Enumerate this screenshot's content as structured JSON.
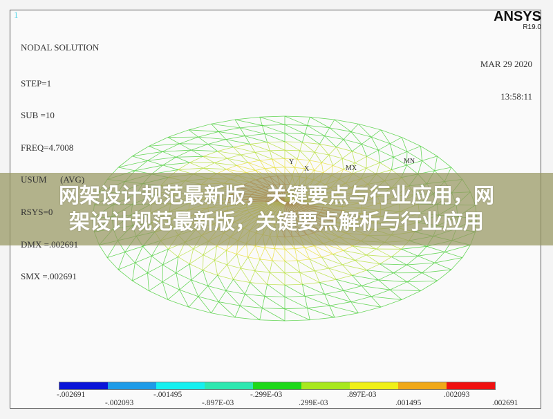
{
  "window_number": "1",
  "info": {
    "title": "NODAL SOLUTION",
    "lines": [
      "STEP=1",
      "SUB =10",
      "FREQ=4.7008",
      "USUM      (AVG)",
      "RSYS=0",
      "DMX =.002691",
      "SMX =.002691"
    ]
  },
  "logo": {
    "name": "ANSYS",
    "version": "R19.0"
  },
  "date": "MAR 29 2020",
  "time": "13:58:11",
  "markers": {
    "min": "MN",
    "max": "MX",
    "x_axis": "X",
    "y_axis": "Y"
  },
  "overlay": {
    "line1": "网架设计规范最新版，关键要点与行业应用，网",
    "line2": "架设计规范最新版，关键要点解析与行业应用"
  },
  "legend": {
    "colors": [
      "#0a14d8",
      "#1e9be8",
      "#16f0f0",
      "#2ee8b0",
      "#1ed81a",
      "#a8e81e",
      "#f0f018",
      "#f0a818",
      "#f01010"
    ],
    "labels_top": [
      "-.002691",
      "-.001495",
      "-.299E-03",
      ".897E-03",
      ".002093"
    ],
    "labels_bottom": [
      "-.002093",
      "-.897E-03",
      ".299E-03",
      ".001495",
      ".002691"
    ]
  }
}
